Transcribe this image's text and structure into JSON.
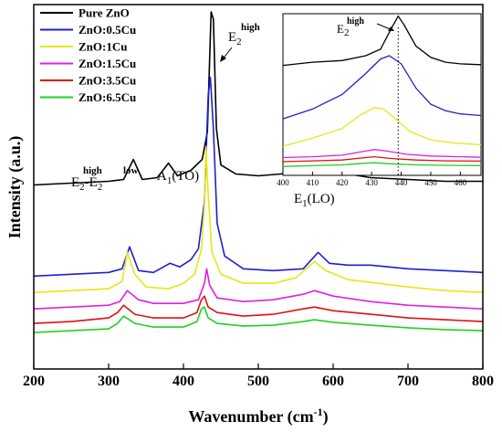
{
  "chart_data": {
    "type": "line",
    "title": "",
    "xlabel": "Wavenumber (cm",
    "xlabel_sup": "-1",
    "xlabel_end": ")",
    "ylabel": "Intensity (a.u.)",
    "xlim": [
      200,
      800
    ],
    "x_ticks": [
      "200",
      "300",
      "400",
      "500",
      "600",
      "700",
      "800"
    ],
    "x_tick_values": [
      200,
      300,
      400,
      500,
      600,
      700,
      800
    ],
    "grid": false,
    "legend_position": "top-left",
    "series": [
      {
        "name": "Pure ZnO",
        "color": "#000000",
        "points": [
          [
            200,
            0.505
          ],
          [
            250,
            0.51
          ],
          [
            300,
            0.515
          ],
          [
            320,
            0.52
          ],
          [
            333,
            0.575
          ],
          [
            345,
            0.52
          ],
          [
            365,
            0.525
          ],
          [
            380,
            0.565
          ],
          [
            392,
            0.53
          ],
          [
            410,
            0.545
          ],
          [
            425,
            0.575
          ],
          [
            432,
            0.65
          ],
          [
            437,
            0.98
          ],
          [
            440,
            0.96
          ],
          [
            444,
            0.66
          ],
          [
            450,
            0.56
          ],
          [
            470,
            0.535
          ],
          [
            500,
            0.53
          ],
          [
            530,
            0.535
          ],
          [
            560,
            0.545
          ],
          [
            580,
            0.575
          ],
          [
            590,
            0.56
          ],
          [
            620,
            0.535
          ],
          [
            650,
            0.525
          ],
          [
            700,
            0.52
          ],
          [
            750,
            0.515
          ],
          [
            800,
            0.515
          ]
        ]
      },
      {
        "name": "ZnO:0.5Cu",
        "color": "#1f1fd0",
        "points": [
          [
            200,
            0.255
          ],
          [
            250,
            0.26
          ],
          [
            300,
            0.265
          ],
          [
            318,
            0.275
          ],
          [
            328,
            0.335
          ],
          [
            340,
            0.27
          ],
          [
            360,
            0.265
          ],
          [
            382,
            0.29
          ],
          [
            395,
            0.28
          ],
          [
            410,
            0.3
          ],
          [
            420,
            0.33
          ],
          [
            428,
            0.46
          ],
          [
            433,
            0.75
          ],
          [
            436,
            0.8
          ],
          [
            440,
            0.66
          ],
          [
            445,
            0.4
          ],
          [
            455,
            0.31
          ],
          [
            480,
            0.275
          ],
          [
            520,
            0.27
          ],
          [
            560,
            0.275
          ],
          [
            580,
            0.32
          ],
          [
            595,
            0.29
          ],
          [
            620,
            0.285
          ],
          [
            650,
            0.285
          ],
          [
            700,
            0.275
          ],
          [
            750,
            0.27
          ],
          [
            800,
            0.265
          ]
        ]
      },
      {
        "name": "ZnO:1Cu",
        "color": "#e6e61a",
        "points": [
          [
            200,
            0.21
          ],
          [
            250,
            0.215
          ],
          [
            300,
            0.22
          ],
          [
            318,
            0.24
          ],
          [
            325,
            0.32
          ],
          [
            335,
            0.26
          ],
          [
            350,
            0.225
          ],
          [
            380,
            0.22
          ],
          [
            400,
            0.235
          ],
          [
            415,
            0.26
          ],
          [
            424,
            0.33
          ],
          [
            428,
            0.45
          ],
          [
            430,
            0.61
          ],
          [
            433,
            0.48
          ],
          [
            438,
            0.32
          ],
          [
            450,
            0.26
          ],
          [
            480,
            0.235
          ],
          [
            520,
            0.235
          ],
          [
            550,
            0.25
          ],
          [
            575,
            0.295
          ],
          [
            590,
            0.27
          ],
          [
            620,
            0.245
          ],
          [
            700,
            0.225
          ],
          [
            750,
            0.215
          ],
          [
            800,
            0.21
          ]
        ]
      },
      {
        "name": "ZnO:1.5Cu",
        "color": "#e020e0",
        "points": [
          [
            200,
            0.165
          ],
          [
            250,
            0.17
          ],
          [
            300,
            0.175
          ],
          [
            315,
            0.185
          ],
          [
            325,
            0.215
          ],
          [
            340,
            0.19
          ],
          [
            360,
            0.18
          ],
          [
            400,
            0.18
          ],
          [
            420,
            0.19
          ],
          [
            428,
            0.235
          ],
          [
            431,
            0.275
          ],
          [
            435,
            0.23
          ],
          [
            445,
            0.195
          ],
          [
            480,
            0.185
          ],
          [
            520,
            0.19
          ],
          [
            560,
            0.205
          ],
          [
            575,
            0.215
          ],
          [
            600,
            0.2
          ],
          [
            650,
            0.185
          ],
          [
            700,
            0.175
          ],
          [
            750,
            0.17
          ],
          [
            800,
            0.165
          ]
        ]
      },
      {
        "name": "ZnO:3.5Cu",
        "color": "#e01010",
        "points": [
          [
            200,
            0.125
          ],
          [
            250,
            0.13
          ],
          [
            300,
            0.14
          ],
          [
            312,
            0.155
          ],
          [
            320,
            0.175
          ],
          [
            335,
            0.15
          ],
          [
            360,
            0.14
          ],
          [
            400,
            0.14
          ],
          [
            418,
            0.155
          ],
          [
            424,
            0.19
          ],
          [
            428,
            0.2
          ],
          [
            433,
            0.17
          ],
          [
            445,
            0.155
          ],
          [
            480,
            0.145
          ],
          [
            520,
            0.15
          ],
          [
            560,
            0.165
          ],
          [
            575,
            0.17
          ],
          [
            600,
            0.16
          ],
          [
            650,
            0.15
          ],
          [
            700,
            0.14
          ],
          [
            750,
            0.135
          ],
          [
            800,
            0.13
          ]
        ]
      },
      {
        "name": "ZnO:6.5Cu",
        "color": "#20d020",
        "points": [
          [
            200,
            0.1
          ],
          [
            250,
            0.105
          ],
          [
            300,
            0.11
          ],
          [
            312,
            0.125
          ],
          [
            320,
            0.145
          ],
          [
            335,
            0.125
          ],
          [
            360,
            0.115
          ],
          [
            400,
            0.115
          ],
          [
            418,
            0.13
          ],
          [
            424,
            0.165
          ],
          [
            428,
            0.17
          ],
          [
            433,
            0.14
          ],
          [
            445,
            0.125
          ],
          [
            480,
            0.118
          ],
          [
            520,
            0.12
          ],
          [
            560,
            0.13
          ],
          [
            575,
            0.135
          ],
          [
            600,
            0.128
          ],
          [
            650,
            0.12
          ],
          [
            700,
            0.113
          ],
          [
            750,
            0.108
          ],
          [
            800,
            0.105
          ]
        ]
      }
    ],
    "annotations": [
      {
        "text": "E",
        "sub": "2",
        "sup": "high",
        "peak": "main"
      },
      {
        "text": "E",
        "sub": "2",
        "sup": "high",
        "join": "-E",
        "sub2": "2",
        "sup2": "low",
        "peak": "difference"
      },
      {
        "text": "A",
        "sub": "1",
        "suffix": "(TO)",
        "peak": "A1"
      },
      {
        "text": "E",
        "sub": "1",
        "suffix": "(LO)",
        "peak": "E1"
      }
    ],
    "inset": {
      "xlim": [
        400,
        467
      ],
      "x_ticks": [
        "400",
        "410",
        "420",
        "430",
        "440",
        "450",
        "460"
      ],
      "x_tick_values": [
        400,
        410,
        420,
        430,
        440,
        450,
        460
      ],
      "marker_x": 439,
      "annotation": {
        "text": "E",
        "sub": "2",
        "sup": "high"
      },
      "series": [
        {
          "name": "Pure ZnO",
          "color": "#000000",
          "points": [
            [
              400,
              0.68
            ],
            [
              410,
              0.7
            ],
            [
              420,
              0.71
            ],
            [
              428,
              0.74
            ],
            [
              433,
              0.78
            ],
            [
              437,
              0.92
            ],
            [
              439,
              0.985
            ],
            [
              441,
              0.93
            ],
            [
              445,
              0.8
            ],
            [
              450,
              0.73
            ],
            [
              455,
              0.7
            ],
            [
              460,
              0.69
            ],
            [
              467,
              0.685
            ]
          ]
        },
        {
          "name": "ZnO:0.5Cu",
          "color": "#1f1fd0",
          "points": [
            [
              400,
              0.35
            ],
            [
              410,
              0.41
            ],
            [
              420,
              0.5
            ],
            [
              428,
              0.63
            ],
            [
              433,
              0.72
            ],
            [
              436,
              0.74
            ],
            [
              440,
              0.69
            ],
            [
              445,
              0.54
            ],
            [
              450,
              0.44
            ],
            [
              455,
              0.4
            ],
            [
              460,
              0.38
            ],
            [
              467,
              0.37
            ]
          ]
        },
        {
          "name": "ZnO:1Cu",
          "color": "#e6e61a",
          "points": [
            [
              400,
              0.18
            ],
            [
              410,
              0.23
            ],
            [
              420,
              0.29
            ],
            [
              426,
              0.37
            ],
            [
              431,
              0.42
            ],
            [
              434,
              0.41
            ],
            [
              438,
              0.35
            ],
            [
              443,
              0.27
            ],
            [
              450,
              0.22
            ],
            [
              458,
              0.2
            ],
            [
              467,
              0.19
            ]
          ]
        },
        {
          "name": "ZnO:1.5Cu",
          "color": "#e020e0",
          "points": [
            [
              400,
              0.11
            ],
            [
              410,
              0.115
            ],
            [
              420,
              0.125
            ],
            [
              428,
              0.15
            ],
            [
              431,
              0.16
            ],
            [
              435,
              0.15
            ],
            [
              442,
              0.13
            ],
            [
              450,
              0.12
            ],
            [
              460,
              0.115
            ],
            [
              467,
              0.112
            ]
          ]
        },
        {
          "name": "ZnO:3.5Cu",
          "color": "#e01010",
          "points": [
            [
              400,
              0.085
            ],
            [
              410,
              0.09
            ],
            [
              420,
              0.095
            ],
            [
              428,
              0.11
            ],
            [
              431,
              0.115
            ],
            [
              436,
              0.105
            ],
            [
              445,
              0.095
            ],
            [
              455,
              0.09
            ],
            [
              467,
              0.088
            ]
          ]
        },
        {
          "name": "ZnO:6.5Cu",
          "color": "#20d020",
          "points": [
            [
              400,
              0.055
            ],
            [
              410,
              0.06
            ],
            [
              420,
              0.065
            ],
            [
              428,
              0.075
            ],
            [
              431,
              0.078
            ],
            [
              436,
              0.072
            ],
            [
              445,
              0.065
            ],
            [
              455,
              0.062
            ],
            [
              467,
              0.06
            ]
          ]
        }
      ]
    }
  }
}
